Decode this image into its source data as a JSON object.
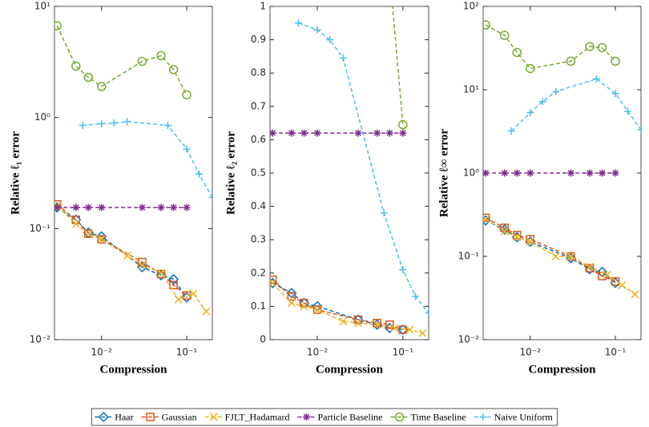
{
  "legend": [
    {
      "name": "Haar",
      "color": "#0072BD",
      "marker": "diamond"
    },
    {
      "name": "Gaussian",
      "color": "#D95319",
      "marker": "square"
    },
    {
      "name": "FJLT_Hadamard",
      "color": "#EDB120",
      "marker": "x"
    },
    {
      "name": "Particle Baseline",
      "color": "#7E2F8E",
      "marker": "asterisk"
    },
    {
      "name": "Time Baseline",
      "color": "#77AC30",
      "marker": "circle"
    },
    {
      "name": "Naive Uniform",
      "color": "#4DBEEE",
      "marker": "plus"
    }
  ],
  "chart_data": [
    {
      "type": "line",
      "xlabel": "Compression",
      "ylabel": "Relative ℓ₁ error",
      "xscale": "log",
      "yscale": "log",
      "xlim": [
        0.0028,
        0.2
      ],
      "xticks": [
        {
          "value": 0.01,
          "label": "10⁻²"
        },
        {
          "value": 0.1,
          "label": "10⁻¹"
        }
      ],
      "ylim": [
        0.01,
        10
      ],
      "yticks": [
        {
          "value": 0.01,
          "label": "10⁻²"
        },
        {
          "value": 0.1,
          "label": "10⁻¹"
        },
        {
          "value": 1,
          "label": "10⁰"
        },
        {
          "value": 10,
          "label": "10¹"
        }
      ],
      "series": [
        {
          "x": [
            0.003,
            0.005,
            0.007,
            0.01,
            0.03,
            0.05,
            0.07,
            0.1
          ],
          "values": [
            0.155,
            0.12,
            0.092,
            0.085,
            0.045,
            0.038,
            0.035,
            0.024
          ]
        },
        {
          "x": [
            0.003,
            0.005,
            0.007,
            0.01,
            0.03,
            0.05,
            0.07,
            0.1
          ],
          "values": [
            0.165,
            0.12,
            0.09,
            0.08,
            0.05,
            0.039,
            0.031,
            0.025
          ]
        },
        {
          "x": [
            0.003,
            0.005,
            0.007,
            0.01,
            0.02,
            0.03,
            0.05,
            0.08,
            0.12,
            0.17
          ],
          "values": [
            0.16,
            0.11,
            0.09,
            0.08,
            0.057,
            0.047,
            0.04,
            0.023,
            0.026,
            0.018
          ]
        },
        {
          "x": [
            0.003,
            0.005,
            0.007,
            0.01,
            0.03,
            0.05,
            0.07,
            0.1
          ],
          "values": [
            0.155,
            0.155,
            0.155,
            0.155,
            0.155,
            0.155,
            0.155,
            0.155
          ]
        },
        {
          "x": [
            0.003,
            0.005,
            0.007,
            0.01,
            0.03,
            0.05,
            0.07,
            0.1
          ],
          "values": [
            6.7,
            2.9,
            2.3,
            1.9,
            3.2,
            3.6,
            2.7,
            1.6
          ]
        },
        {
          "x": [
            0.006,
            0.01,
            0.014,
            0.02,
            0.06,
            0.1,
            0.14,
            0.2
          ],
          "values": [
            0.85,
            0.88,
            0.89,
            0.92,
            0.85,
            0.52,
            0.31,
            0.19
          ]
        }
      ]
    },
    {
      "type": "line",
      "xlabel": "Compression",
      "ylabel": "Relative ℓ₂ error",
      "xscale": "log",
      "yscale": "linear",
      "xlim": [
        0.0028,
        0.2
      ],
      "xticks": [
        {
          "value": 0.01,
          "label": "10⁻²"
        },
        {
          "value": 0.1,
          "label": "10⁻¹"
        }
      ],
      "ylim": [
        0,
        1
      ],
      "yticks": [
        0,
        0.1,
        0.2,
        0.3,
        0.4,
        0.5,
        0.6,
        0.7,
        0.8,
        0.9,
        1
      ],
      "series": [
        {
          "x": [
            0.003,
            0.005,
            0.007,
            0.01,
            0.03,
            0.05,
            0.07,
            0.1
          ],
          "values": [
            0.17,
            0.14,
            0.11,
            0.1,
            0.06,
            0.045,
            0.035,
            0.03
          ]
        },
        {
          "x": [
            0.003,
            0.005,
            0.007,
            0.01,
            0.03,
            0.05,
            0.07,
            0.1
          ],
          "values": [
            0.18,
            0.13,
            0.11,
            0.09,
            0.06,
            0.05,
            0.045,
            0.03
          ]
        },
        {
          "x": [
            0.003,
            0.005,
            0.007,
            0.01,
            0.02,
            0.03,
            0.05,
            0.08,
            0.12,
            0.17
          ],
          "values": [
            0.17,
            0.11,
            0.1,
            0.09,
            0.055,
            0.05,
            0.045,
            0.035,
            0.03,
            0.02
          ]
        },
        {
          "x": [
            0.003,
            0.005,
            0.007,
            0.01,
            0.03,
            0.05,
            0.07,
            0.1
          ],
          "values": [
            0.62,
            0.62,
            0.62,
            0.62,
            0.62,
            0.62,
            0.62,
            0.62
          ]
        },
        {
          "x": [
            0.003,
            0.005,
            0.007,
            0.01,
            0.03,
            0.05,
            0.07,
            0.1
          ],
          "values": [
            null,
            null,
            null,
            null,
            null,
            null,
            1.1,
            0.645
          ]
        },
        {
          "x": [
            0.006,
            0.01,
            0.014,
            0.02,
            0.06,
            0.1,
            0.14,
            0.2
          ],
          "values": [
            0.95,
            0.93,
            0.9,
            0.845,
            0.38,
            0.21,
            0.13,
            0.08
          ]
        }
      ]
    },
    {
      "type": "line",
      "xlabel": "Compression",
      "ylabel": "Relative ℓ∞ error",
      "xscale": "log",
      "yscale": "log",
      "xlim": [
        0.0028,
        0.2
      ],
      "xticks": [
        {
          "value": 0.01,
          "label": "10⁻²"
        },
        {
          "value": 0.1,
          "label": "10⁻¹"
        }
      ],
      "ylim": [
        0.01,
        100
      ],
      "yticks": [
        {
          "value": 0.01,
          "label": "10⁻²"
        },
        {
          "value": 0.1,
          "label": "10⁻¹"
        },
        {
          "value": 1,
          "label": "10⁰"
        },
        {
          "value": 10,
          "label": "10¹"
        },
        {
          "value": 100,
          "label": "10²"
        }
      ],
      "series": [
        {
          "x": [
            0.003,
            0.005,
            0.007,
            0.01,
            0.03,
            0.05,
            0.07,
            0.1
          ],
          "values": [
            0.27,
            0.21,
            0.17,
            0.15,
            0.095,
            0.07,
            0.065,
            0.048
          ]
        },
        {
          "x": [
            0.003,
            0.005,
            0.007,
            0.01,
            0.03,
            0.05,
            0.07,
            0.1
          ],
          "values": [
            0.29,
            0.22,
            0.18,
            0.16,
            0.1,
            0.072,
            0.058,
            0.05
          ]
        },
        {
          "x": [
            0.003,
            0.005,
            0.007,
            0.01,
            0.02,
            0.03,
            0.05,
            0.08,
            0.12,
            0.17
          ],
          "values": [
            0.28,
            0.2,
            0.17,
            0.15,
            0.1,
            0.1,
            0.075,
            0.06,
            0.045,
            0.035
          ]
        },
        {
          "x": [
            0.003,
            0.005,
            0.007,
            0.01,
            0.03,
            0.05,
            0.07,
            0.1
          ],
          "values": [
            1,
            1,
            1,
            1,
            1,
            1,
            1,
            1
          ]
        },
        {
          "x": [
            0.003,
            0.005,
            0.007,
            0.01,
            0.03,
            0.05,
            0.07,
            0.1
          ],
          "values": [
            60,
            45,
            28,
            18,
            22,
            33,
            32,
            22
          ]
        },
        {
          "x": [
            0.006,
            0.01,
            0.014,
            0.02,
            0.06,
            0.1,
            0.14,
            0.2
          ],
          "values": [
            3.2,
            5.3,
            7.2,
            9.5,
            13.5,
            9,
            5.5,
            3.3
          ]
        }
      ]
    }
  ]
}
